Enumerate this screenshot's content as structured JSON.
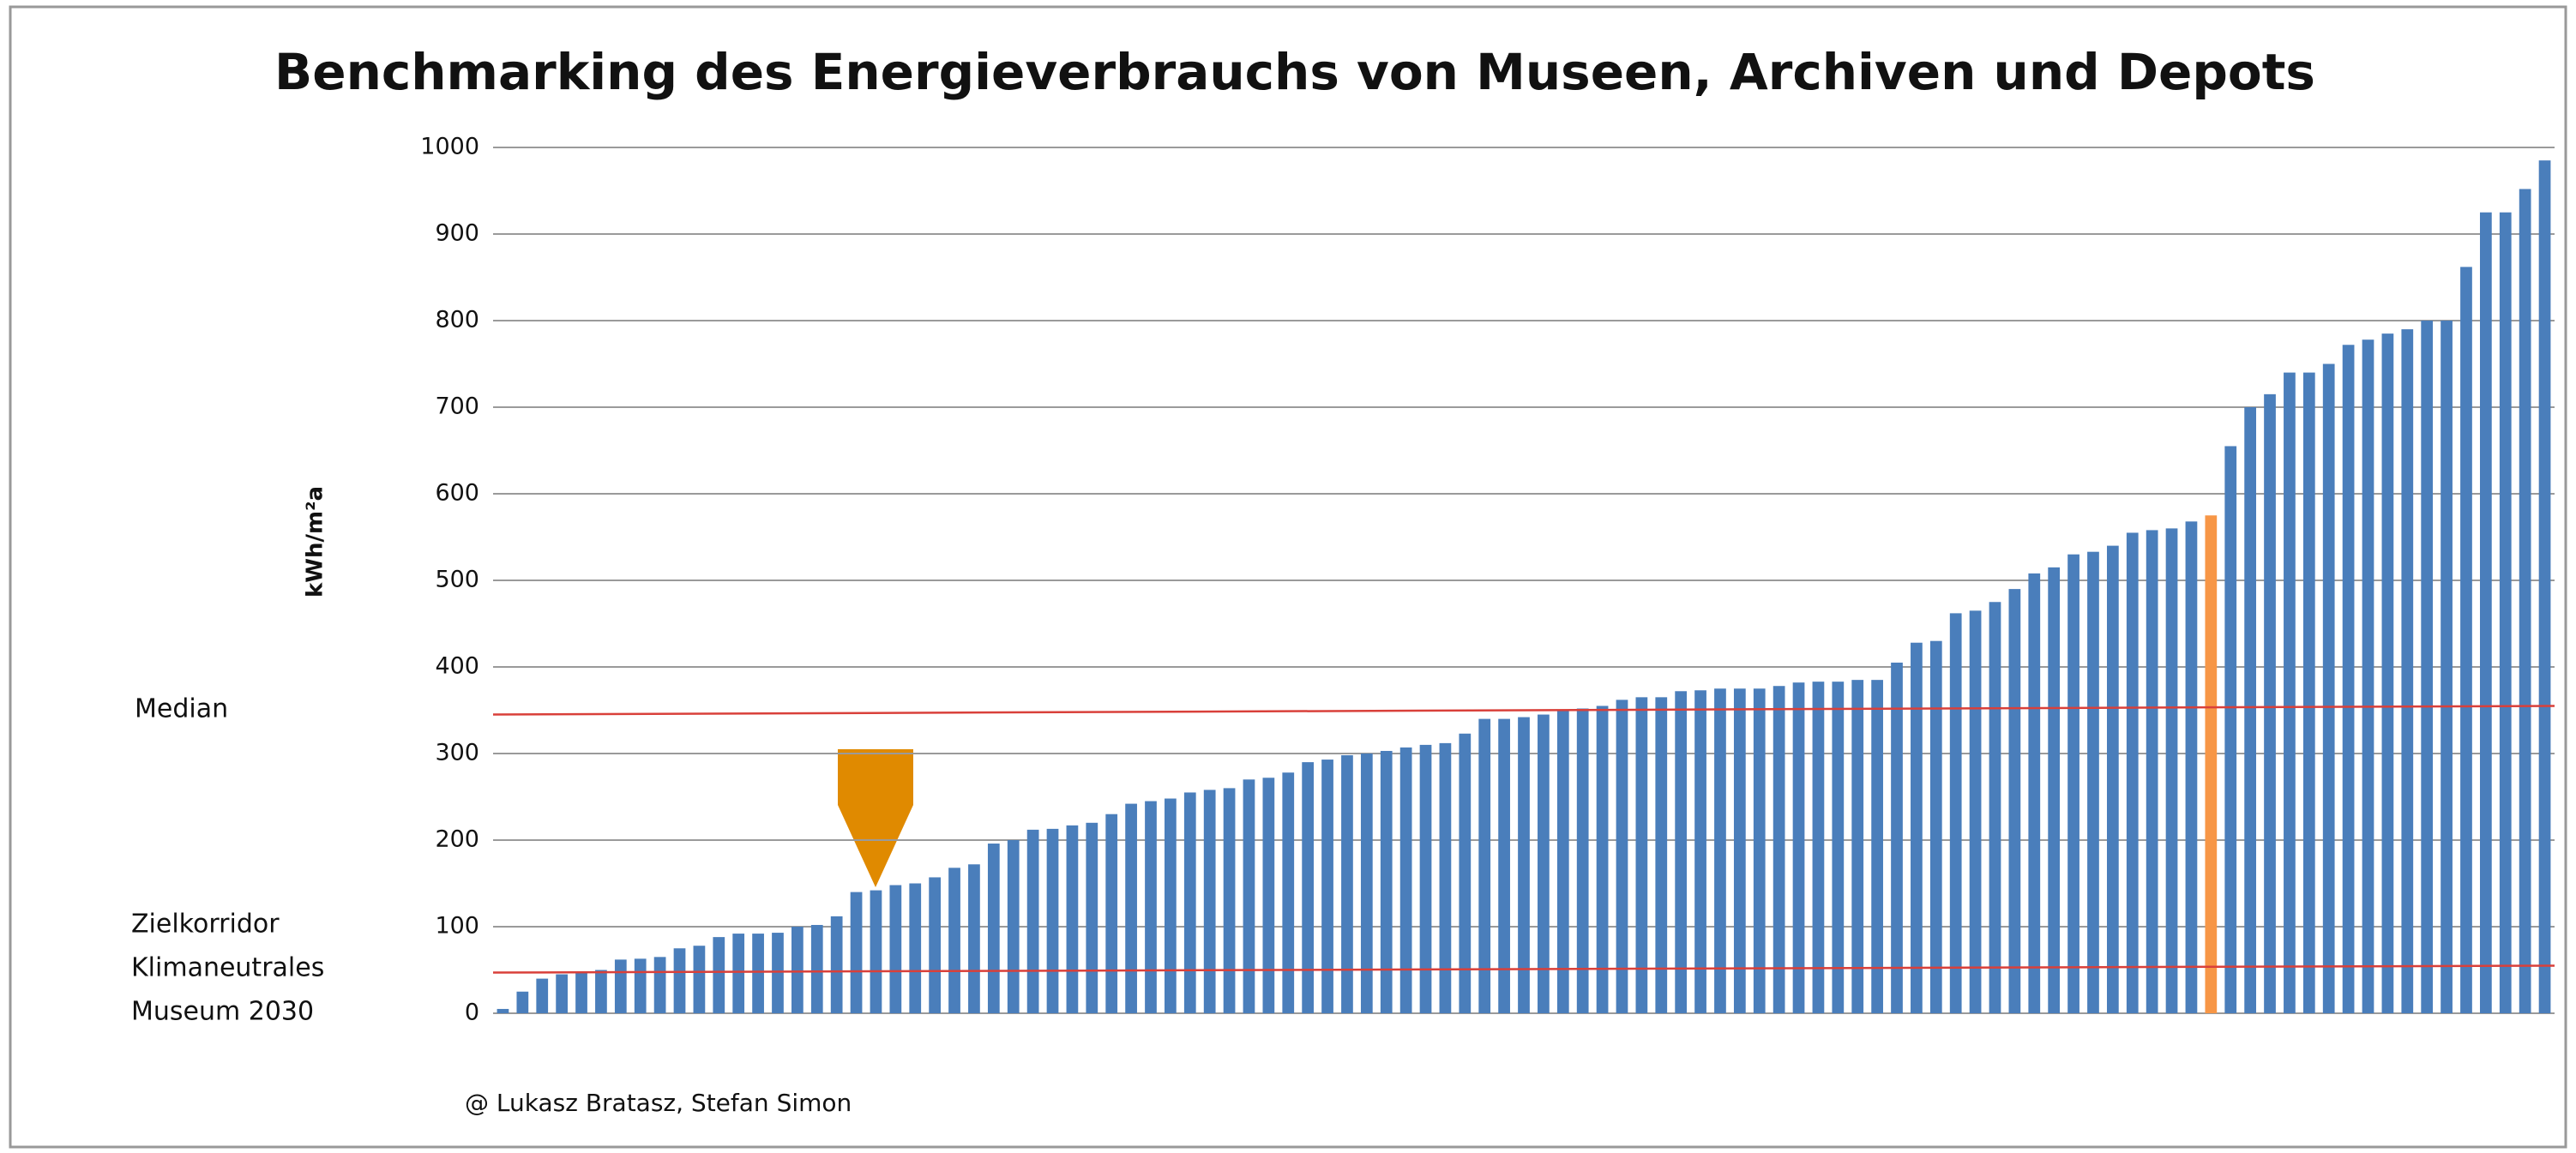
{
  "chart_data": {
    "type": "bar",
    "title": "Benchmarking des Energieverbrauchs von Museen, Archiven und Depots",
    "y_label": "kWh/m²a",
    "categories": [
      null,
      null,
      null,
      null,
      null,
      null,
      null,
      null,
      null,
      null,
      null,
      null,
      null,
      null,
      null,
      null,
      null,
      null,
      null,
      null,
      null,
      null,
      null,
      null,
      null,
      null,
      null,
      null,
      null,
      null,
      null,
      null,
      null,
      null,
      null,
      null,
      null,
      null,
      null,
      null,
      null,
      null,
      null,
      null,
      null,
      null,
      null,
      null,
      null,
      null,
      null,
      null,
      null,
      null,
      null,
      null,
      null,
      null,
      null,
      null,
      null,
      null,
      null,
      null,
      null,
      null,
      null,
      null,
      null,
      null,
      null,
      null,
      null,
      null,
      null,
      null,
      null,
      null,
      null,
      null,
      null,
      null,
      null,
      null,
      null,
      null,
      null,
      null,
      null,
      null,
      null,
      null,
      null,
      null,
      null,
      null,
      null,
      null,
      null,
      null,
      null,
      null,
      null,
      null,
      null
    ],
    "values": [
      5,
      25,
      40,
      45,
      47,
      50,
      62,
      63,
      65,
      75,
      78,
      88,
      92,
      92,
      93,
      100,
      102,
      112,
      140,
      142,
      148,
      150,
      157,
      168,
      172,
      196,
      200,
      212,
      213,
      217,
      220,
      230,
      242,
      245,
      248,
      255,
      258,
      260,
      270,
      272,
      278,
      290,
      293,
      298,
      300,
      303,
      307,
      310,
      312,
      323,
      340,
      340,
      342,
      345,
      350,
      352,
      355,
      362,
      365,
      365,
      372,
      373,
      375,
      375,
      375,
      378,
      382,
      383,
      383,
      385,
      385,
      405,
      428,
      430,
      462,
      465,
      475,
      490,
      508,
      515,
      530,
      533,
      540,
      555,
      558,
      560,
      568,
      575,
      655,
      700,
      715,
      740,
      740,
      750,
      772,
      778,
      785,
      790,
      800,
      800,
      862,
      925,
      925,
      952,
      985
    ],
    "colors": [
      "#4a7ebb",
      "#4a7ebb",
      "#4a7ebb",
      "#4a7ebb",
      "#4a7ebb",
      "#4a7ebb",
      "#4a7ebb",
      "#4a7ebb",
      "#4a7ebb",
      "#4a7ebb",
      "#4a7ebb",
      "#4a7ebb",
      "#4a7ebb",
      "#4a7ebb",
      "#4a7ebb",
      "#4a7ebb",
      "#4a7ebb",
      "#4a7ebb",
      "#4a7ebb",
      "#4a7ebb",
      "#4a7ebb",
      "#4a7ebb",
      "#4a7ebb",
      "#4a7ebb",
      "#4a7ebb",
      "#4a7ebb",
      "#4a7ebb",
      "#4a7ebb",
      "#4a7ebb",
      "#4a7ebb",
      "#4a7ebb",
      "#4a7ebb",
      "#4a7ebb",
      "#4a7ebb",
      "#4a7ebb",
      "#4a7ebb",
      "#4a7ebb",
      "#4a7ebb",
      "#4a7ebb",
      "#4a7ebb",
      "#4a7ebb",
      "#4a7ebb",
      "#4a7ebb",
      "#4a7ebb",
      "#4a7ebb",
      "#4a7ebb",
      "#4a7ebb",
      "#4a7ebb",
      "#4a7ebb",
      "#4a7ebb",
      "#4a7ebb",
      "#4a7ebb",
      "#4a7ebb",
      "#4a7ebb",
      "#4a7ebb",
      "#4a7ebb",
      "#4a7ebb",
      "#4a7ebb",
      "#4a7ebb",
      "#4a7ebb",
      "#4a7ebb",
      "#4a7ebb",
      "#4a7ebb",
      "#4a7ebb",
      "#4a7ebb",
      "#4a7ebb",
      "#4a7ebb",
      "#4a7ebb",
      "#4a7ebb",
      "#4a7ebb",
      "#4a7ebb",
      "#4a7ebb",
      "#4a7ebb",
      "#4a7ebb",
      "#4a7ebb",
      "#4a7ebb",
      "#4a7ebb",
      "#4a7ebb",
      "#4a7ebb",
      "#4a7ebb",
      "#4a7ebb",
      "#4a7ebb",
      "#4a7ebb",
      "#4a7ebb",
      "#4a7ebb",
      "#4a7ebb",
      "#4a7ebb",
      "#f79646",
      "#4a7ebb",
      "#4a7ebb",
      "#4a7ebb",
      "#4a7ebb",
      "#4a7ebb",
      "#4a7ebb",
      "#4a7ebb",
      "#4a7ebb",
      "#4a7ebb",
      "#4a7ebb",
      "#4a7ebb",
      "#4a7ebb",
      "#4a7ebb",
      "#4a7ebb",
      "#4a7ebb",
      "#4a7ebb",
      "#4a7ebb"
    ],
    "ylim": [
      0,
      1000
    ],
    "yticks": [
      0,
      100,
      200,
      300,
      400,
      500,
      600,
      700,
      800,
      900,
      1000
    ],
    "grid": true,
    "reference_lines": [
      {
        "label": [
          "Median"
        ],
        "start": 345,
        "end": 355,
        "color": "#d9403a"
      },
      {
        "label": [
          "Zielkorridor",
          "Klimaneutrales",
          "Museum 2030"
        ],
        "start": 47,
        "end": 55,
        "color": "#d9403a"
      }
    ],
    "credit": "@ Lukasz Bratasz, Stefan Simon"
  }
}
